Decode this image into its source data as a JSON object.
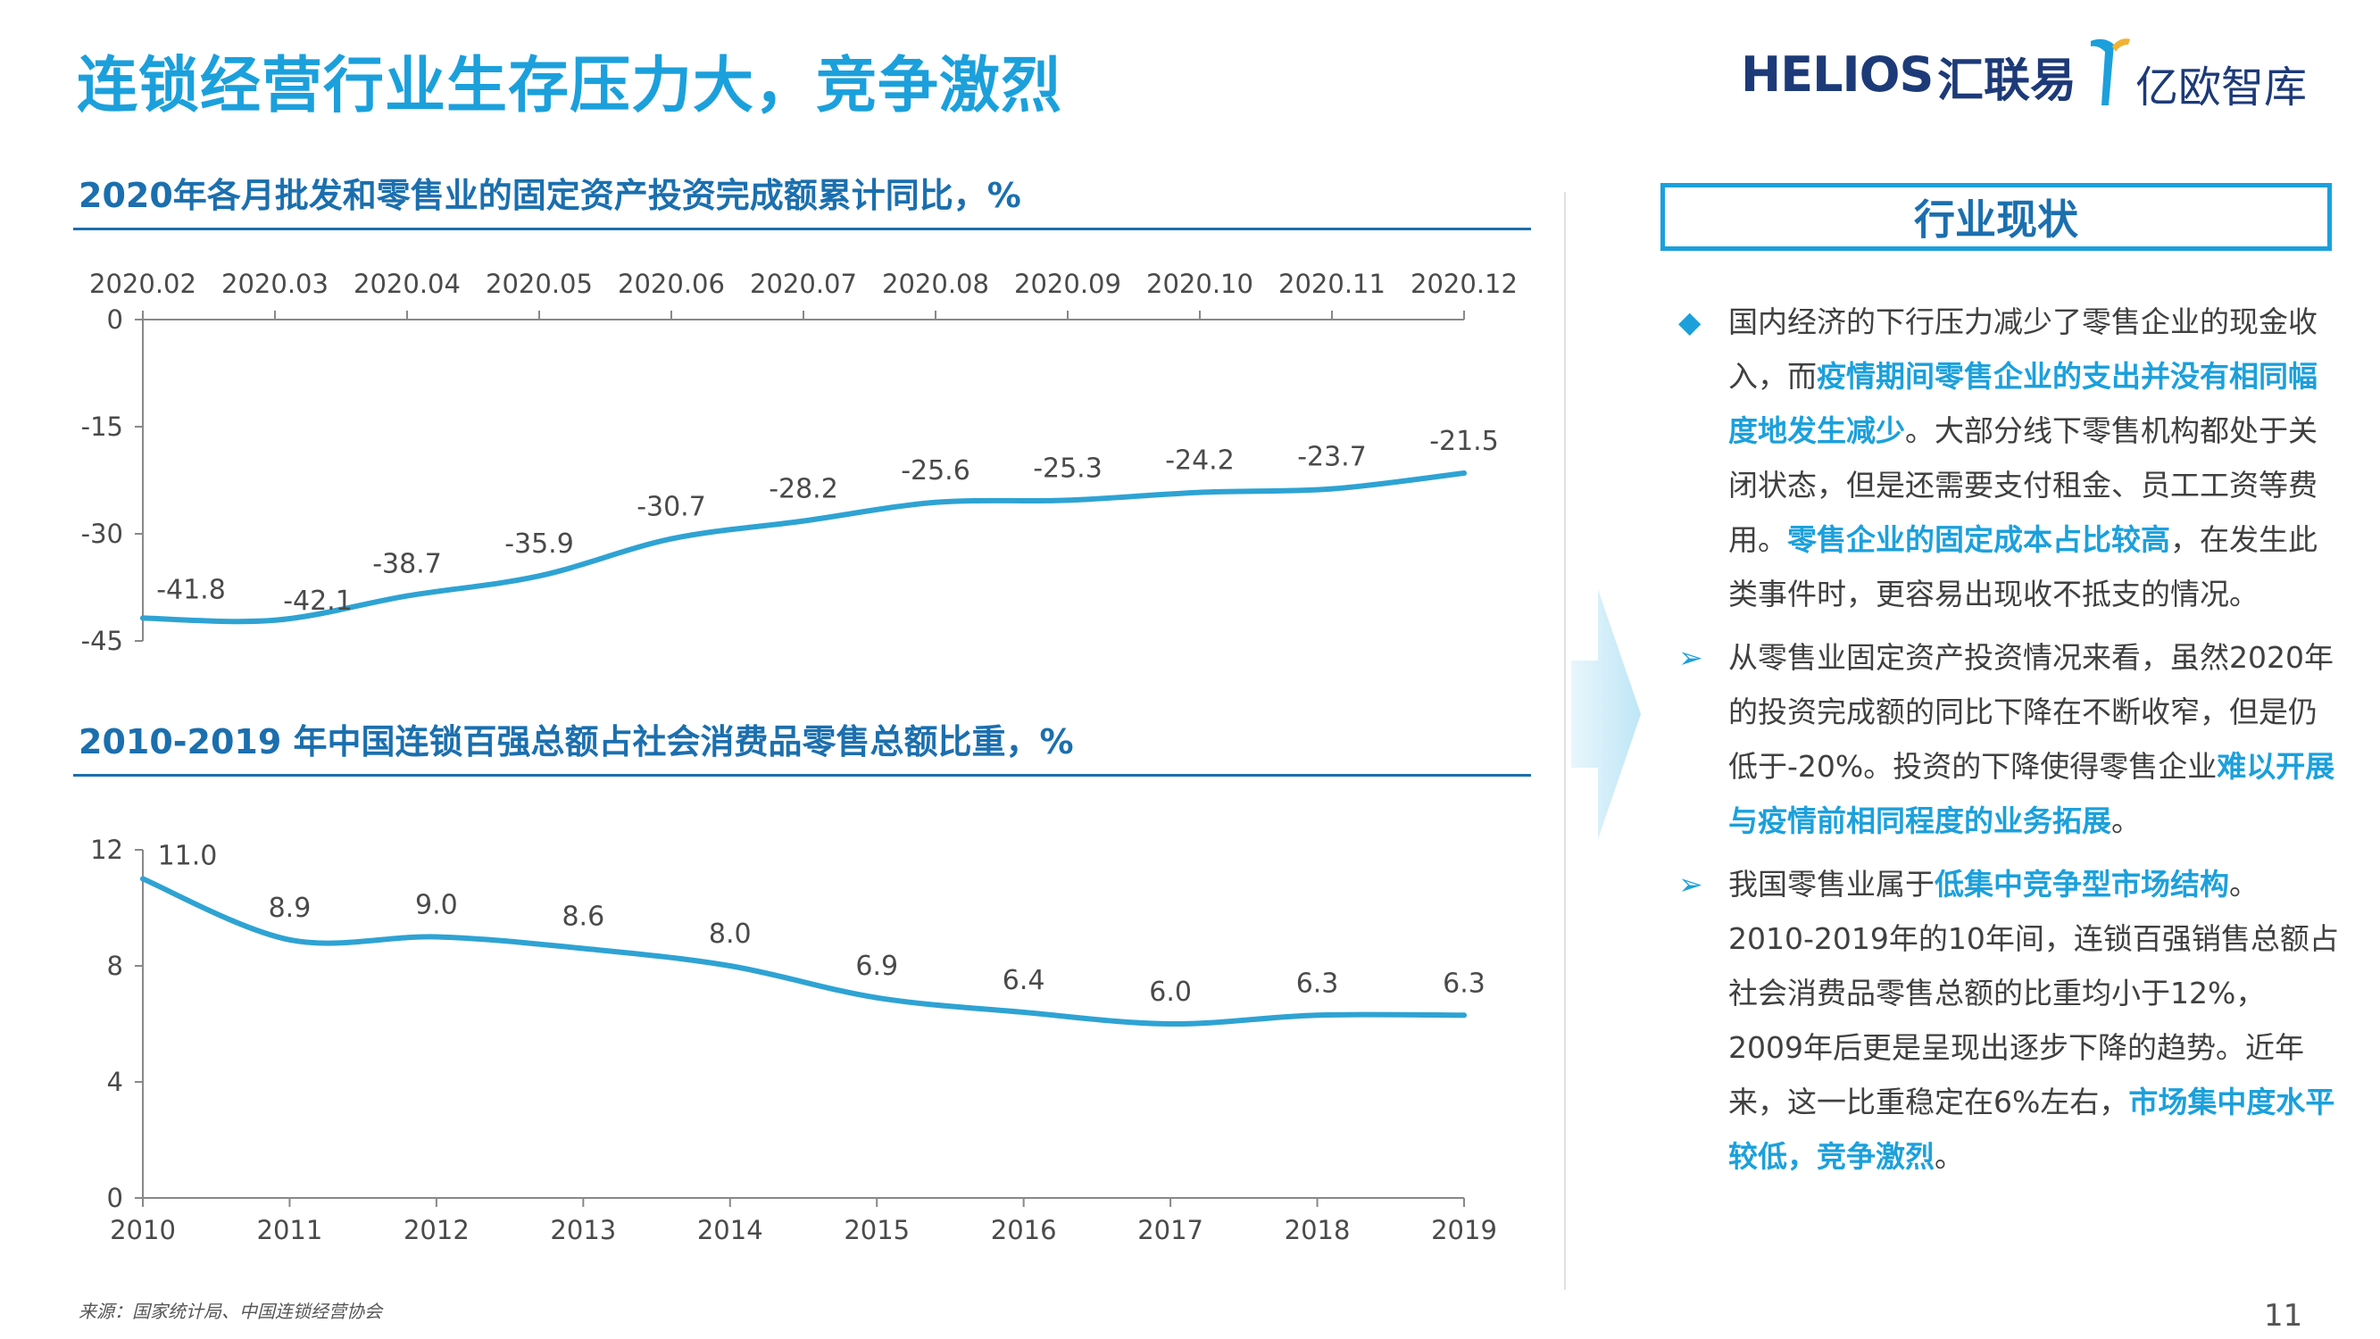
{
  "page": {
    "title": "连锁经营行业生存压力大，竞争激烈",
    "source": "来源：国家统计局、中国连锁经营协会",
    "page_number": "11"
  },
  "logos": {
    "helios": "HELIOS",
    "helios_cn": "汇联易",
    "iyiou_cn": "亿欧智库"
  },
  "colors": {
    "accent": "#1ba0dc",
    "title_blue": "#1b6fae",
    "series": "#2ea3d3",
    "navy": "#1d3a78"
  },
  "chart_data": [
    {
      "type": "line",
      "title": "2020年各月批发和零售业的固定资产投资完成额累计同比，%",
      "x": [
        "2020.02",
        "2020.03",
        "2020.04",
        "2020.05",
        "2020.06",
        "2020.07",
        "2020.08",
        "2020.09",
        "2020.10",
        "2020.11",
        "2020.12"
      ],
      "values": [
        -41.8,
        -42.1,
        -38.7,
        -35.9,
        -30.7,
        -28.2,
        -25.6,
        -25.3,
        -24.2,
        -23.7,
        -21.5
      ],
      "data_labels": [
        "-41.8",
        "-42.1",
        "-38.7",
        "-35.9",
        "-30.7",
        "-28.2",
        "-25.6",
        "-25.3",
        "-24.2",
        "-23.7",
        "-21.5"
      ],
      "y_ticks": [
        "0",
        "-15",
        "-30",
        "-45"
      ],
      "ylim": [
        -45,
        0
      ],
      "x_axis_position": "top",
      "grid": false
    },
    {
      "type": "line",
      "title": "2010-2019 年中国连锁百强总额占社会消费品零售总额比重，%",
      "x": [
        "2010",
        "2011",
        "2012",
        "2013",
        "2014",
        "2015",
        "2016",
        "2017",
        "2018",
        "2019"
      ],
      "values": [
        11.0,
        8.9,
        9.0,
        8.6,
        8.0,
        6.9,
        6.4,
        6.0,
        6.3,
        6.3
      ],
      "data_labels": [
        "11.0",
        "8.9",
        "9.0",
        "8.6",
        "8.0",
        "6.9",
        "6.4",
        "6.0",
        "6.3",
        "6.3"
      ],
      "y_ticks": [
        "12",
        "8",
        "4",
        "0"
      ],
      "ylim": [
        0,
        12
      ],
      "x_axis_position": "bottom",
      "grid": false
    }
  ],
  "panel": {
    "header": "行业现状",
    "bullets": [
      {
        "marker": "◆",
        "parts": [
          {
            "text": "国内经济的下行压力减少了零售企业的现金收入，而",
            "hl": false
          },
          {
            "text": "疫情期间零售企业的支出并没有相同幅度地发生减少",
            "hl": true
          },
          {
            "text": "。大部分线下零售机构都处于关闭状态，但是还需要支付租金、员工工资等费用。",
            "hl": false
          },
          {
            "text": "零售企业的固定成本占比较高",
            "hl": true
          },
          {
            "text": "，在发生此类事件时，更容易出现收不抵支的情况。",
            "hl": false
          }
        ]
      },
      {
        "marker": "➢",
        "parts": [
          {
            "text": "从零售业固定资产投资情况来看，虽然2020年的投资完成额的同比下降在不断收窄，但是仍低于-20%。投资的下降使得零售企业",
            "hl": false
          },
          {
            "text": "难以开展与疫情前相同程度的业务拓展",
            "hl": true
          },
          {
            "text": "。",
            "hl": false
          }
        ]
      },
      {
        "marker": "➢",
        "parts": [
          {
            "text": "我国零售业属于",
            "hl": false
          },
          {
            "text": "低集中竞争型市场结构",
            "hl": true
          },
          {
            "text": "。2010-2019年的10年间，连锁百强销售总额占社会消费品零售总额的比重均小于12%，2009年后更是呈现出逐步下降的趋势。近年来，这一比重稳定在6%左右，",
            "hl": false
          },
          {
            "text": "市场集中度水平较低，竞争激烈",
            "hl": true
          },
          {
            "text": "。",
            "hl": false
          }
        ]
      }
    ]
  }
}
